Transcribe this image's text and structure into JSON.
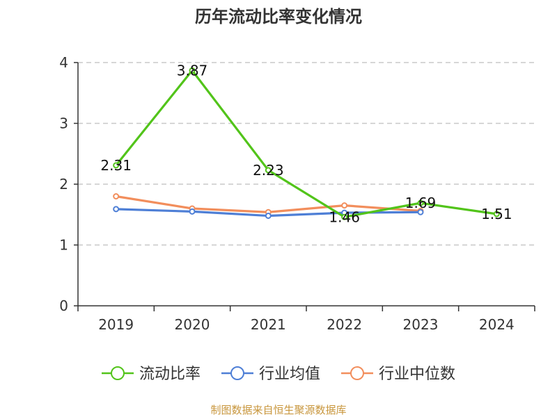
{
  "chart_data": {
    "type": "line",
    "title": "历年流动比率变化情况",
    "categories": [
      "2019",
      "2020",
      "2021",
      "2022",
      "2023",
      "2024"
    ],
    "ylim": [
      0,
      4
    ],
    "yticks": [
      0,
      1,
      2,
      3,
      4
    ],
    "grid": "horizontal-dashed",
    "legend_position": "bottom",
    "series": [
      {
        "name": "流动比率",
        "color": "#52c41a",
        "values": [
          2.31,
          3.87,
          2.23,
          1.46,
          1.69,
          1.51
        ],
        "labels": [
          "2.31",
          "3.87",
          "2.23",
          "1.46",
          "1.69",
          "1.51"
        ]
      },
      {
        "name": "行业均值",
        "color": "#4e7fd6",
        "values": [
          1.59,
          1.55,
          1.48,
          1.53,
          1.54,
          null
        ]
      },
      {
        "name": "行业中位数",
        "color": "#f28e5c",
        "values": [
          1.8,
          1.6,
          1.54,
          1.65,
          1.56,
          null
        ]
      }
    ],
    "source": "制图数据来自恒生聚源数据库"
  }
}
